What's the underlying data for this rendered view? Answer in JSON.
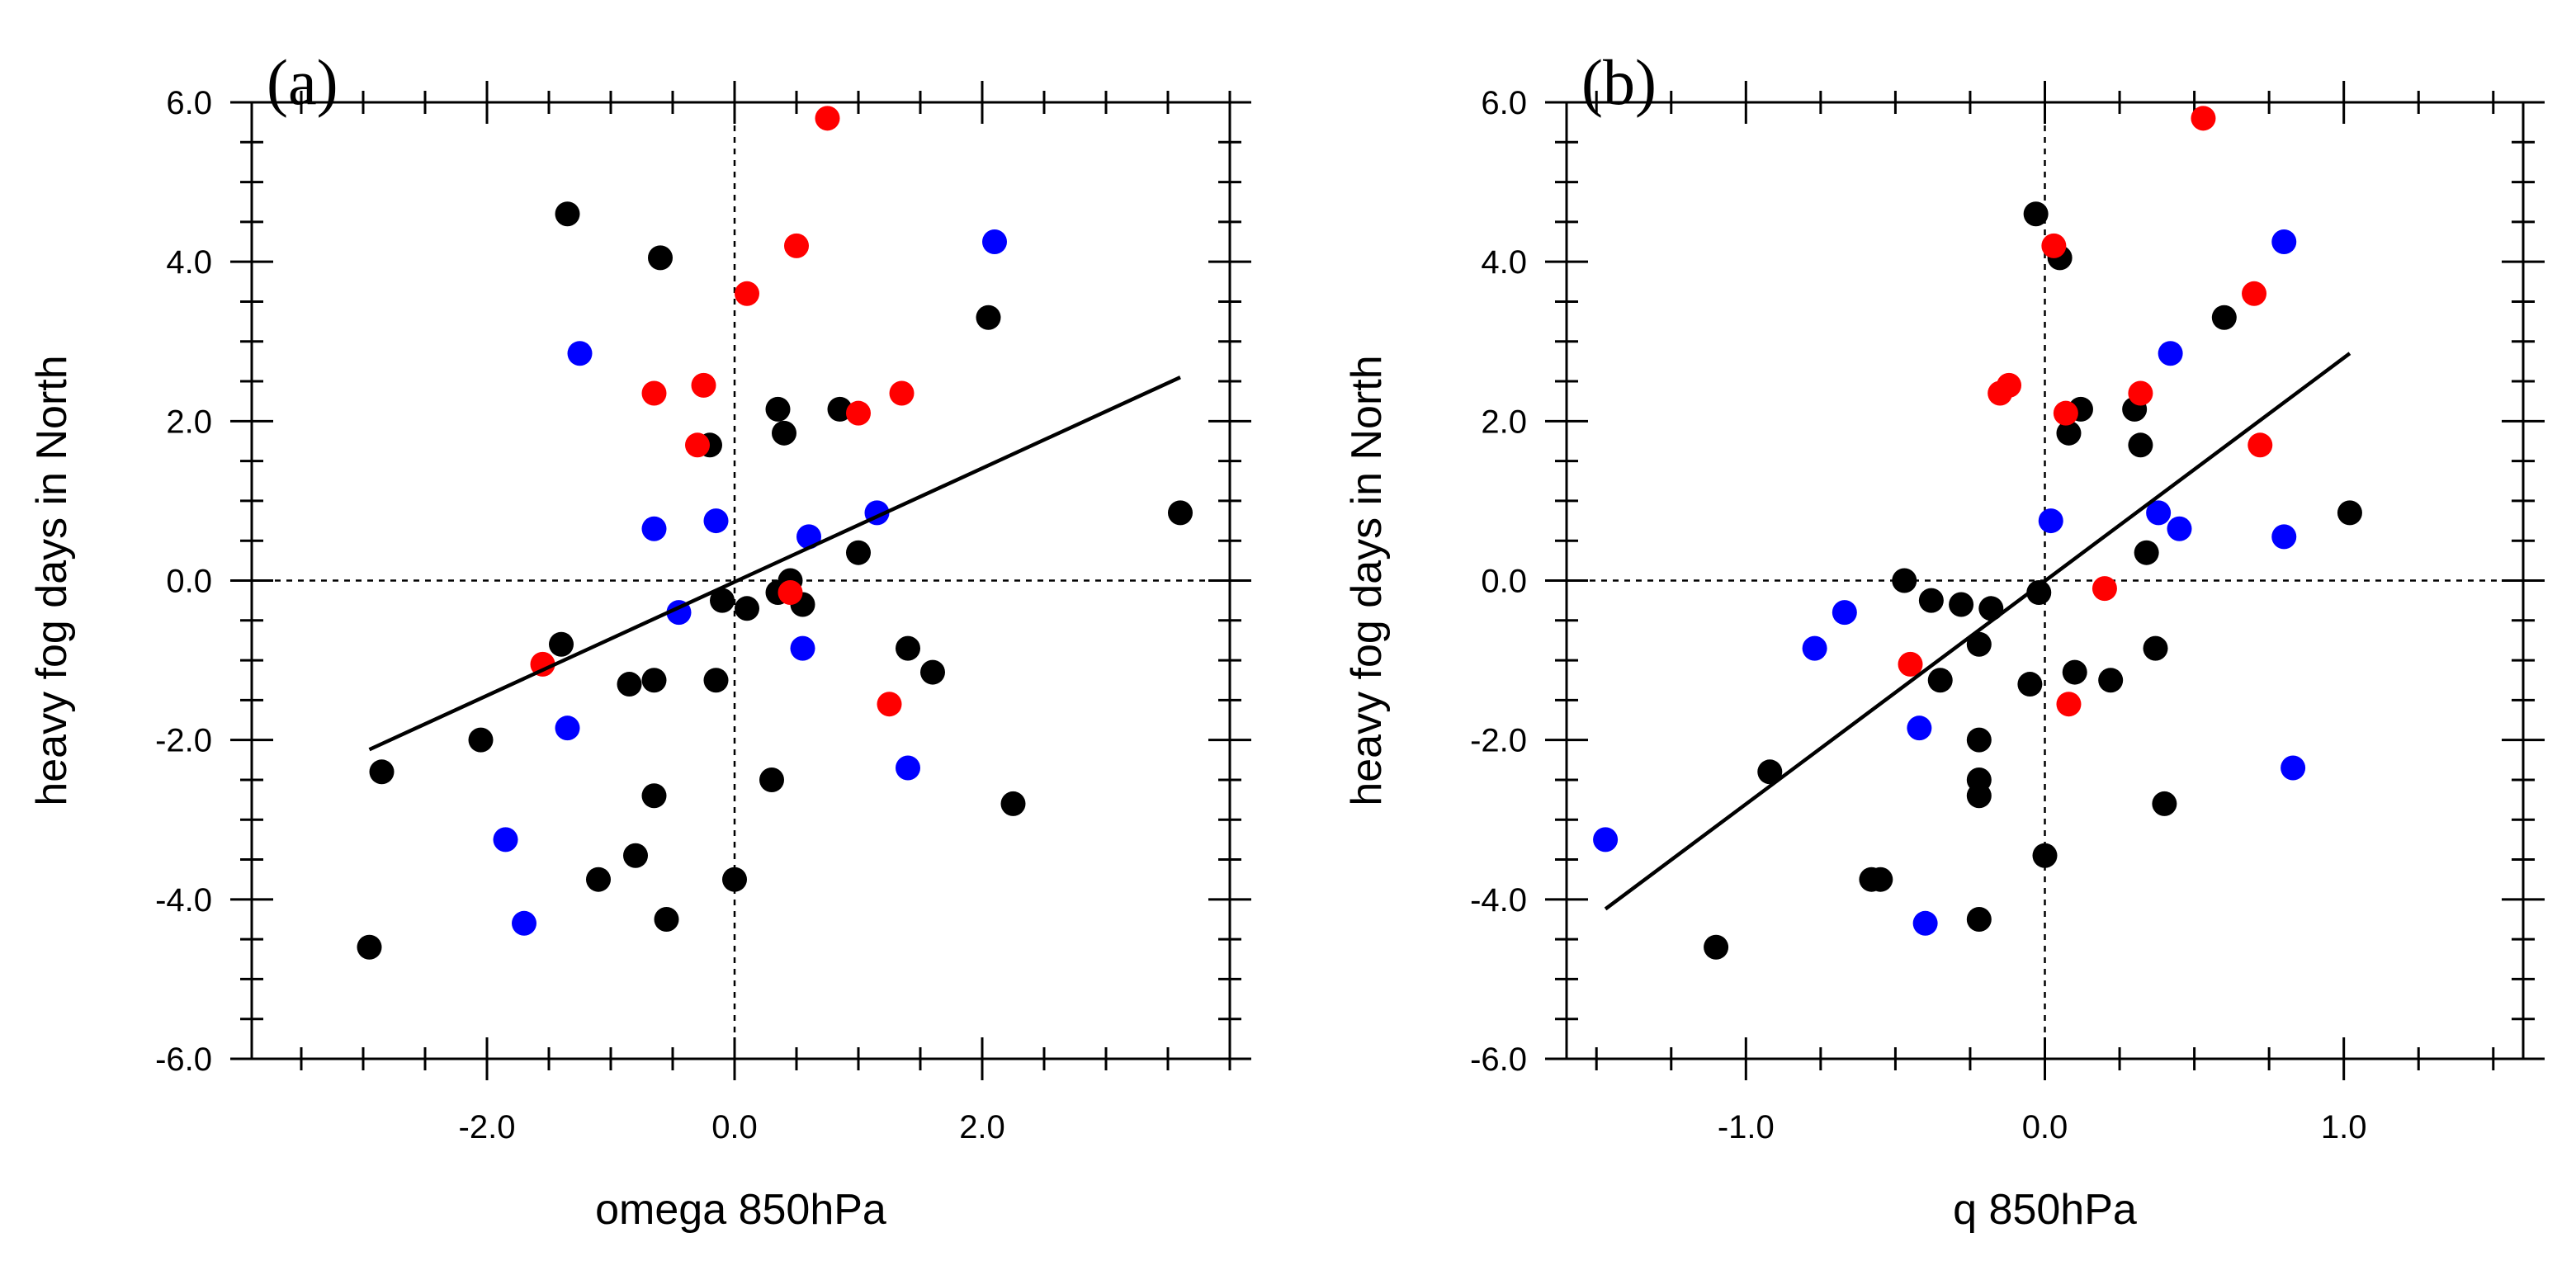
{
  "colors": {
    "black": "#000000",
    "red": "#ff0000",
    "blue": "#0000ff"
  },
  "chart_data": [
    {
      "type": "scatter",
      "panel_label": "(a)",
      "xlabel": "omega 850hPa",
      "ylabel": "heavy fog days in North",
      "xlim": [
        -3.9,
        4.0
      ],
      "ylim": [
        -6.0,
        6.0
      ],
      "x_ticks": [
        -2.0,
        0.0,
        2.0
      ],
      "x_tick_labels": [
        "-2.0",
        "0.0",
        "2.0"
      ],
      "x_minor_step": 0.5,
      "y_ticks": [
        -6.0,
        -4.0,
        -2.0,
        0.0,
        2.0,
        4.0,
        6.0
      ],
      "y_tick_labels": [
        "-6.0",
        "-4.0",
        "-2.0",
        "0.0",
        "2.0",
        "4.0",
        "6.0"
      ],
      "y_minor_step": 0.5,
      "grid": false,
      "zero_lines": true,
      "fit_line": [
        [
          -2.95,
          -2.12
        ],
        [
          3.6,
          2.55
        ]
      ],
      "series": [
        {
          "color": "black",
          "points": [
            [
              -2.95,
              -4.6
            ],
            [
              -2.85,
              -2.4
            ],
            [
              -2.05,
              -2.0
            ],
            [
              -1.4,
              -0.8
            ],
            [
              -1.35,
              4.6
            ],
            [
              -1.1,
              -3.75
            ],
            [
              -0.85,
              -1.3
            ],
            [
              -0.8,
              -3.45
            ],
            [
              -0.65,
              -1.25
            ],
            [
              -0.65,
              -2.7
            ],
            [
              -0.6,
              4.05
            ],
            [
              -0.55,
              -4.25
            ],
            [
              -0.2,
              1.7
            ],
            [
              -0.15,
              -1.25
            ],
            [
              -0.1,
              -0.25
            ],
            [
              0.0,
              -3.75
            ],
            [
              0.1,
              -0.35
            ],
            [
              0.3,
              -2.5
            ],
            [
              0.35,
              -0.15
            ],
            [
              0.35,
              2.15
            ],
            [
              0.4,
              1.85
            ],
            [
              0.45,
              0.0
            ],
            [
              0.55,
              -0.3
            ],
            [
              0.85,
              2.15
            ],
            [
              1.0,
              0.35
            ],
            [
              1.4,
              -0.85
            ],
            [
              1.6,
              -1.15
            ],
            [
              2.05,
              3.3
            ],
            [
              2.25,
              -2.8
            ],
            [
              3.6,
              0.85
            ]
          ]
        },
        {
          "color": "red",
          "points": [
            [
              -1.55,
              -1.05
            ],
            [
              -0.65,
              2.35
            ],
            [
              -0.3,
              1.7
            ],
            [
              -0.25,
              2.45
            ],
            [
              0.1,
              3.6
            ],
            [
              0.45,
              -0.15
            ],
            [
              0.5,
              4.2
            ],
            [
              0.75,
              5.8
            ],
            [
              1.0,
              2.1
            ],
            [
              1.25,
              -1.55
            ],
            [
              1.35,
              2.35
            ]
          ]
        },
        {
          "color": "blue",
          "points": [
            [
              -1.85,
              -3.25
            ],
            [
              -1.7,
              -4.3
            ],
            [
              -1.35,
              -1.85
            ],
            [
              -1.25,
              2.85
            ],
            [
              -0.65,
              0.65
            ],
            [
              -0.45,
              -0.4
            ],
            [
              -0.15,
              0.75
            ],
            [
              0.55,
              -0.85
            ],
            [
              0.6,
              0.55
            ],
            [
              1.15,
              0.85
            ],
            [
              1.4,
              -2.35
            ],
            [
              2.1,
              4.25
            ]
          ]
        }
      ]
    },
    {
      "type": "scatter",
      "panel_label": "(b)",
      "xlabel": "q 850hPa",
      "ylabel": "heavy fog days in North",
      "xlim": [
        -1.6,
        1.6
      ],
      "ylim": [
        -6.0,
        6.0
      ],
      "x_ticks": [
        -1.0,
        0.0,
        1.0
      ],
      "x_tick_labels": [
        "-1.0",
        "0.0",
        "1.0"
      ],
      "x_minor_step": 0.25,
      "y_ticks": [
        -6.0,
        -4.0,
        -2.0,
        0.0,
        2.0,
        4.0,
        6.0
      ],
      "y_tick_labels": [
        "-6.0",
        "-4.0",
        "-2.0",
        "0.0",
        "2.0",
        "4.0",
        "6.0"
      ],
      "y_minor_step": 0.5,
      "grid": false,
      "zero_lines": true,
      "fit_line": [
        [
          -1.47,
          -4.12
        ],
        [
          1.02,
          2.85
        ]
      ],
      "series": [
        {
          "color": "black",
          "points": [
            [
              -1.1,
              -4.6
            ],
            [
              -0.92,
              -2.4
            ],
            [
              -0.58,
              -3.75
            ],
            [
              -0.55,
              -3.75
            ],
            [
              -0.47,
              0.0
            ],
            [
              -0.38,
              -0.25
            ],
            [
              -0.35,
              -1.25
            ],
            [
              -0.28,
              -0.3
            ],
            [
              -0.22,
              -0.8
            ],
            [
              -0.22,
              -2.0
            ],
            [
              -0.22,
              -2.5
            ],
            [
              -0.22,
              -2.7
            ],
            [
              -0.22,
              -4.25
            ],
            [
              -0.18,
              -0.35
            ],
            [
              -0.05,
              -1.3
            ],
            [
              -0.02,
              -0.15
            ],
            [
              0.0,
              -3.45
            ],
            [
              -0.03,
              4.6
            ],
            [
              0.05,
              4.05
            ],
            [
              0.08,
              1.85
            ],
            [
              0.1,
              -1.15
            ],
            [
              0.12,
              2.15
            ],
            [
              0.22,
              -1.25
            ],
            [
              0.3,
              2.15
            ],
            [
              0.32,
              1.7
            ],
            [
              0.34,
              0.35
            ],
            [
              0.37,
              -0.85
            ],
            [
              0.4,
              -2.8
            ],
            [
              0.6,
              3.3
            ],
            [
              1.02,
              0.85
            ]
          ]
        },
        {
          "color": "red",
          "points": [
            [
              -0.45,
              -1.05
            ],
            [
              -0.15,
              2.35
            ],
            [
              -0.12,
              2.45
            ],
            [
              0.03,
              4.2
            ],
            [
              0.07,
              2.1
            ],
            [
              0.08,
              -1.55
            ],
            [
              0.2,
              -0.1
            ],
            [
              0.32,
              2.35
            ],
            [
              0.53,
              5.8
            ],
            [
              0.7,
              3.6
            ],
            [
              0.72,
              1.7
            ]
          ]
        },
        {
          "color": "blue",
          "points": [
            [
              -1.47,
              -3.25
            ],
            [
              -0.77,
              -0.85
            ],
            [
              -0.67,
              -0.4
            ],
            [
              -0.42,
              -1.85
            ],
            [
              -0.4,
              -4.3
            ],
            [
              0.02,
              0.75
            ],
            [
              0.38,
              0.85
            ],
            [
              0.42,
              2.85
            ],
            [
              0.45,
              0.65
            ],
            [
              0.8,
              0.55
            ],
            [
              0.8,
              4.25
            ],
            [
              0.83,
              -2.35
            ]
          ]
        }
      ]
    }
  ]
}
